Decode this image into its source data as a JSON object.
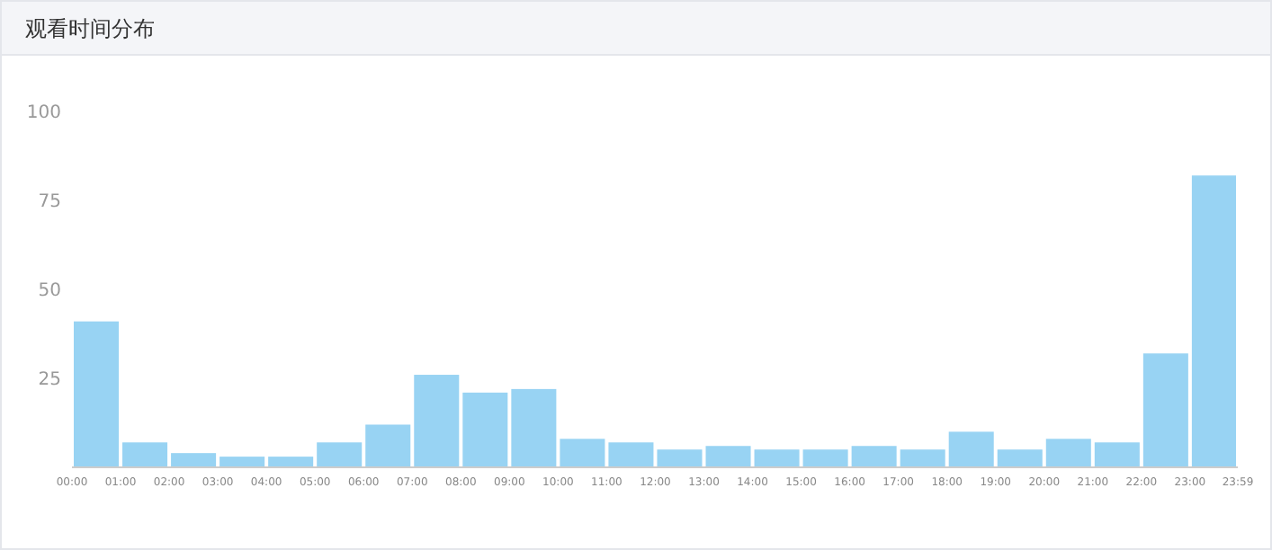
{
  "chart_data": {
    "type": "histogram",
    "title": "观看时间分布",
    "color": "#98d3f3",
    "bins": [
      0,
      1,
      2,
      3,
      4,
      5,
      6,
      7,
      8,
      9,
      10,
      11,
      12,
      13,
      14,
      15,
      16,
      17,
      18,
      19,
      20,
      21,
      22,
      23,
      23.983
    ],
    "values": [
      41,
      7,
      4,
      3,
      3,
      7,
      12,
      26,
      21,
      22,
      8,
      7,
      5,
      6,
      5,
      5,
      6,
      5,
      10,
      5,
      8,
      7,
      32,
      82
    ],
    "xlim": [
      0,
      23.983
    ],
    "xticks": [
      {
        "value": 0,
        "label": "00:00"
      },
      {
        "value": 1,
        "label": "01:00"
      },
      {
        "value": 2,
        "label": "02:00"
      },
      {
        "value": 3,
        "label": "03:00"
      },
      {
        "value": 4,
        "label": "04:00"
      },
      {
        "value": 5,
        "label": "05:00"
      },
      {
        "value": 6,
        "label": "06:00"
      },
      {
        "value": 7,
        "label": "07:00"
      },
      {
        "value": 8,
        "label": "08:00"
      },
      {
        "value": 9,
        "label": "09:00"
      },
      {
        "value": 10,
        "label": "10:00"
      },
      {
        "value": 11,
        "label": "11:00"
      },
      {
        "value": 12,
        "label": "12:00"
      },
      {
        "value": 13,
        "label": "13:00"
      },
      {
        "value": 14,
        "label": "14:00"
      },
      {
        "value": 15,
        "label": "15:00"
      },
      {
        "value": 16,
        "label": "16:00"
      },
      {
        "value": 17,
        "label": "17:00"
      },
      {
        "value": 18,
        "label": "18:00"
      },
      {
        "value": 19,
        "label": "19:00"
      },
      {
        "value": 20,
        "label": "20:00"
      },
      {
        "value": 21,
        "label": "21:00"
      },
      {
        "value": 22,
        "label": "22:00"
      },
      {
        "value": 23,
        "label": "23:00"
      },
      {
        "value": 23.983,
        "label": "23:59"
      }
    ],
    "ylim": [
      0,
      100
    ],
    "yticks": [
      25,
      50,
      75,
      100
    ]
  }
}
